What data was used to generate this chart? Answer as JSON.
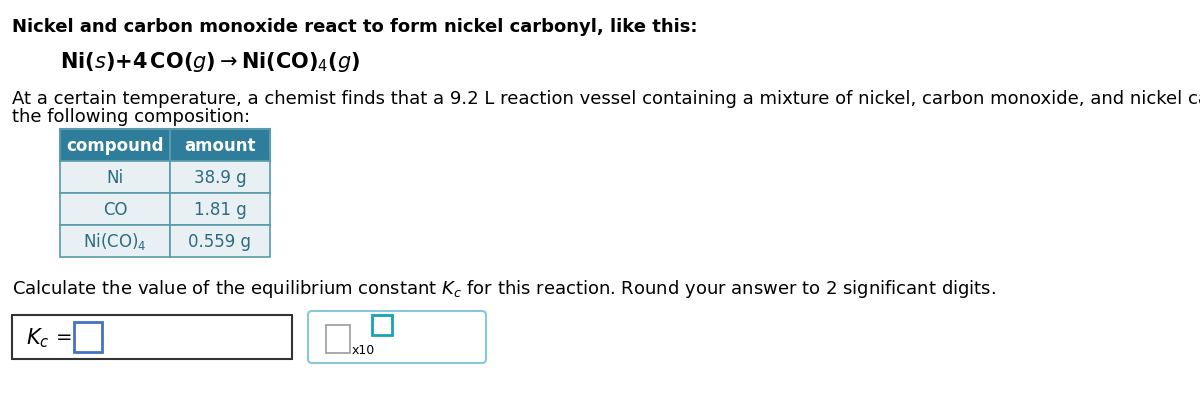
{
  "title_line1": "Nickel and carbon monoxide react to form nickel carbonyl, like this:",
  "paragraph_line1": "At a certain temperature, a chemist finds that a 9.2 L reaction vessel containing a mixture of nickel, carbon monoxide, and nickel carbonyl at equilibrium has",
  "paragraph_line2": "the following composition:",
  "table_headers": [
    "compound",
    "amount"
  ],
  "table_rows": [
    [
      "Ni",
      "38.9 g"
    ],
    [
      "CO",
      "1.81 g"
    ],
    [
      "Ni(CO)4",
      "0.559 g"
    ]
  ],
  "bg_color": "#ffffff",
  "text_color": "#000000",
  "table_header_bg": "#2e7d9a",
  "table_header_text": "#ffffff",
  "table_cell_bg": "#e8f0f3",
  "table_border_color": "#5a9aaa",
  "table_text_color": "#2e6b80",
  "input_box1_color": "#4472c4",
  "input_box2_color": "#17a2b8",
  "box2_border_color": "#88c8d8",
  "font_size": 13,
  "reaction_font_size": 14
}
